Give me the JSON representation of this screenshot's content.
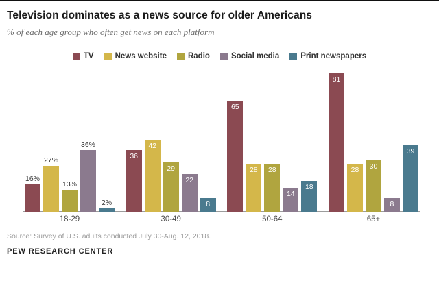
{
  "header": {
    "title": "Television dominates as a news source for older Americans",
    "subtitle_prefix": "% of each age group who ",
    "subtitle_underlined": "often",
    "subtitle_suffix": " get news on each platform"
  },
  "chart_data": {
    "type": "bar",
    "categories": [
      "18-29",
      "30-49",
      "50-64",
      "65+"
    ],
    "series": [
      {
        "name": "TV",
        "color": "#8b4a52",
        "values": [
          16,
          36,
          65,
          81
        ]
      },
      {
        "name": "News website",
        "color": "#d4b74a",
        "values": [
          27,
          42,
          28,
          28
        ]
      },
      {
        "name": "Radio",
        "color": "#b0a53f",
        "values": [
          13,
          29,
          28,
          30
        ]
      },
      {
        "name": "Social media",
        "color": "#8b7a8e",
        "values": [
          36,
          22,
          14,
          8
        ]
      },
      {
        "name": "Print newspapers",
        "color": "#4a7a8e",
        "values": [
          2,
          8,
          18,
          39
        ]
      }
    ],
    "ylim": [
      0,
      85
    ],
    "grid": false,
    "legend_position": "top",
    "value_label_suffix_first_group": "%",
    "label_style": {
      "first_group": "outside-black",
      "other_groups": "inside-white"
    }
  },
  "footer": {
    "source": "Source: Survey of U.S. adults conducted July 30-Aug. 12, 2018.",
    "brand": "PEW RESEARCH CENTER"
  }
}
